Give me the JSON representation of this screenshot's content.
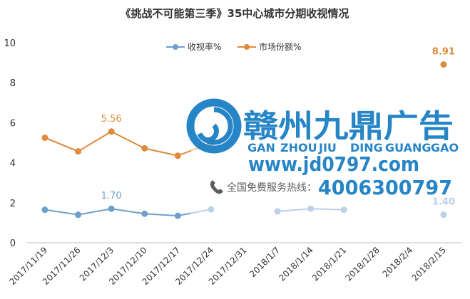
{
  "chart_data": {
    "type": "line",
    "title": "《挑战不可能第三季》35中心城市分期收视情况",
    "xlabel": "",
    "ylabel": "",
    "ylim": [
      0,
      10
    ],
    "yticks": [
      0,
      2,
      4,
      6,
      8,
      10
    ],
    "grid": false,
    "legend_position": "top-center",
    "categories": [
      "2017/11/19",
      "2017/11/26",
      "2017/12/3",
      "2017/12/10",
      "2017/12/17",
      "2017/12/24",
      "2017/12/31",
      "2018/1/7",
      "2018/1/14",
      "2018/1/21",
      "2018/1/28",
      "2018/2/4",
      "2018/2/15"
    ],
    "series": [
      {
        "name": "收视率%",
        "color": "#6f9fcd",
        "values": [
          1.65,
          1.4,
          1.7,
          1.45,
          1.35,
          1.67,
          null,
          1.57,
          1.7,
          1.65,
          null,
          null,
          1.4
        ],
        "labels": [
          {
            "index": 2,
            "text": "1.70"
          },
          {
            "index": 12,
            "text": "1.40"
          }
        ]
      },
      {
        "name": "市场份额%",
        "color": "#e08a3c",
        "values": [
          5.25,
          4.57,
          5.56,
          4.72,
          4.35,
          5.0,
          null,
          null,
          null,
          null,
          null,
          null,
          8.91
        ],
        "labels": [
          {
            "index": 2,
            "text": "5.56"
          },
          {
            "index": 12,
            "text": "8.91"
          }
        ]
      }
    ]
  },
  "watermark": {
    "title": "赣州九鼎广告",
    "pinyin": [
      "GAN",
      "ZHOU",
      "JIU",
      "DING",
      "GUANG",
      "GAO"
    ],
    "url": "www.jd0797.com",
    "hotline_label": "全国免费服务热线：",
    "phone": "4006300797",
    "logo_icon": "swirl-logo-icon",
    "phone_icon": "phone-icon",
    "color": "#1b7fc4"
  }
}
